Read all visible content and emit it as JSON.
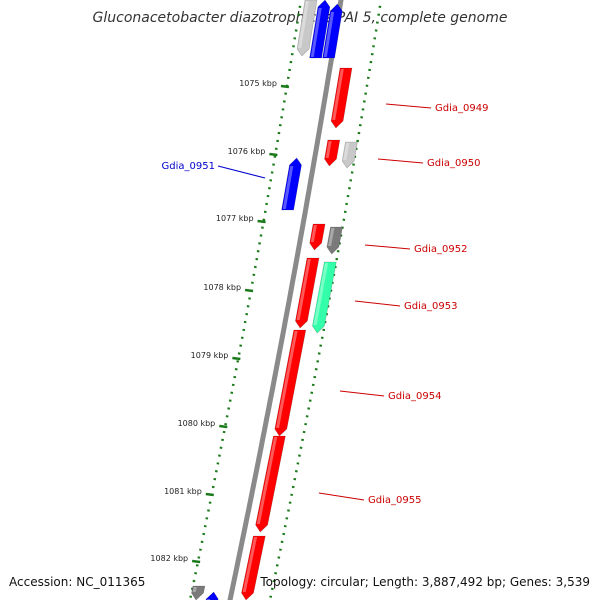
{
  "title": "Gluconacetobacter diazotrophicus PAI 5, complete genome",
  "accession_text": "Accession: NC_011365",
  "summary_text": "Topology: circular; Length: 3,887,492 bp; Genes: 3,539",
  "colors": {
    "backbone": "#8a8a8a",
    "tick": "#1a7a1a",
    "forward_gene": "#ff0000",
    "reverse_gene": "#0000ff",
    "gray_gene": "#7a7a7a",
    "light_gray_gene": "#c8c8c8",
    "highlight_gene": "#33ffaa",
    "forward_label": "#cc0000",
    "reverse_label": "#0000cc"
  },
  "ticks": [
    {
      "label": "1075 kbp"
    },
    {
      "label": "1076 kbp"
    },
    {
      "label": "1077 kbp"
    },
    {
      "label": "1078 kbp"
    },
    {
      "label": "1079 kbp"
    },
    {
      "label": "1080 kbp"
    },
    {
      "label": "1081 kbp"
    },
    {
      "label": "1082 kbp"
    }
  ],
  "gene_labels": [
    {
      "text": "Gdia_0949",
      "strand": "forward"
    },
    {
      "text": "Gdia_0950",
      "strand": "forward"
    },
    {
      "text": "Gdia_0951",
      "strand": "reverse"
    },
    {
      "text": "Gdia_0952",
      "strand": "forward"
    },
    {
      "text": "Gdia_0953",
      "strand": "forward"
    },
    {
      "text": "Gdia_0954",
      "strand": "forward"
    },
    {
      "text": "Gdia_0955",
      "strand": "forward"
    }
  ]
}
